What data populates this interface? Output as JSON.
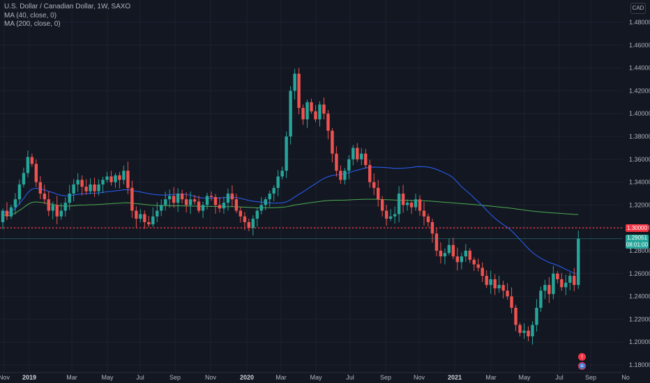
{
  "legend": {
    "symbol": "U.S. Dollar / Canadian Dollar, 1W, SAXO",
    "ma40": "MA (40, close, 0)",
    "ma200": "MA (200, close, 0)"
  },
  "currency_label": "CAD",
  "price_tags": {
    "level_price": "1.30000",
    "last_price": "1.29051",
    "countdown": "08:01:00"
  },
  "colors": {
    "background": "#131722",
    "up": "#26a69a",
    "down": "#ef5350",
    "ma40": "#2962ff",
    "ma200": "#4caf50",
    "level_line": "#f23645"
  },
  "event_icons": [
    "alert-icon",
    "us-flag-icon"
  ],
  "chart_data": {
    "type": "candlestick",
    "title": "U.S. Dollar / Canadian Dollar, 1W, SAXO",
    "ylim": [
      1.17,
      1.49
    ],
    "y_ticks": [
      "1.48000",
      "1.46000",
      "1.44000",
      "1.42000",
      "1.40000",
      "1.38000",
      "1.36000",
      "1.34000",
      "1.32000",
      "1.30000",
      "1.28000",
      "1.26000",
      "1.24000",
      "1.22000",
      "1.20000",
      "1.18000"
    ],
    "x_ticks": [
      {
        "label": "Nov",
        "bold": false
      },
      {
        "label": "2019",
        "bold": true
      },
      {
        "label": "Mar",
        "bold": false
      },
      {
        "label": "May",
        "bold": false
      },
      {
        "label": "Jul",
        "bold": false
      },
      {
        "label": "Sep",
        "bold": false
      },
      {
        "label": "Nov",
        "bold": false
      },
      {
        "label": "2020",
        "bold": true
      },
      {
        "label": "Mar",
        "bold": false
      },
      {
        "label": "May",
        "bold": false
      },
      {
        "label": "Jul",
        "bold": false
      },
      {
        "label": "Sep",
        "bold": false
      },
      {
        "label": "Nov",
        "bold": false
      },
      {
        "label": "2021",
        "bold": true
      },
      {
        "label": "Mar",
        "bold": false
      },
      {
        "label": "May",
        "bold": false
      },
      {
        "label": "Jul",
        "bold": false
      },
      {
        "label": "Sep",
        "bold": false
      },
      {
        "label": "No",
        "bold": false
      }
    ],
    "horizontal_line": 1.3,
    "last_price": 1.29051,
    "close": [
      1.315,
      1.31,
      1.318,
      1.325,
      1.338,
      1.348,
      1.362,
      1.356,
      1.34,
      1.33,
      1.325,
      1.315,
      1.32,
      1.31,
      1.315,
      1.322,
      1.33,
      1.338,
      1.342,
      1.336,
      1.332,
      1.338,
      1.332,
      1.338,
      1.342,
      1.345,
      1.34,
      1.346,
      1.342,
      1.35,
      1.335,
      1.315,
      1.308,
      1.312,
      1.305,
      1.303,
      1.31,
      1.315,
      1.32,
      1.325,
      1.328,
      1.322,
      1.33,
      1.325,
      1.32,
      1.325,
      1.323,
      1.315,
      1.32,
      1.328,
      1.327,
      1.32,
      1.317,
      1.322,
      1.33,
      1.325,
      1.315,
      1.31,
      1.305,
      1.3,
      1.308,
      1.315,
      1.32,
      1.325,
      1.33,
      1.335,
      1.345,
      1.35,
      1.38,
      1.42,
      1.435,
      1.405,
      1.395,
      1.41,
      1.402,
      1.395,
      1.408,
      1.4,
      1.385,
      1.365,
      1.35,
      1.342,
      1.35,
      1.36,
      1.37,
      1.36,
      1.365,
      1.355,
      1.34,
      1.335,
      1.325,
      1.315,
      1.308,
      1.31,
      1.312,
      1.33,
      1.32,
      1.322,
      1.318,
      1.325,
      1.315,
      1.31,
      1.305,
      1.295,
      1.28,
      1.275,
      1.278,
      1.285,
      1.275,
      1.27,
      1.275,
      1.28,
      1.272,
      1.268,
      1.265,
      1.258,
      1.25,
      1.255,
      1.247,
      1.25,
      1.245,
      1.24,
      1.23,
      1.215,
      1.208,
      1.21,
      1.205,
      1.215,
      1.23,
      1.245,
      1.25,
      1.242,
      1.26,
      1.255,
      1.248,
      1.252,
      1.258,
      1.25,
      1.2905
    ]
  }
}
